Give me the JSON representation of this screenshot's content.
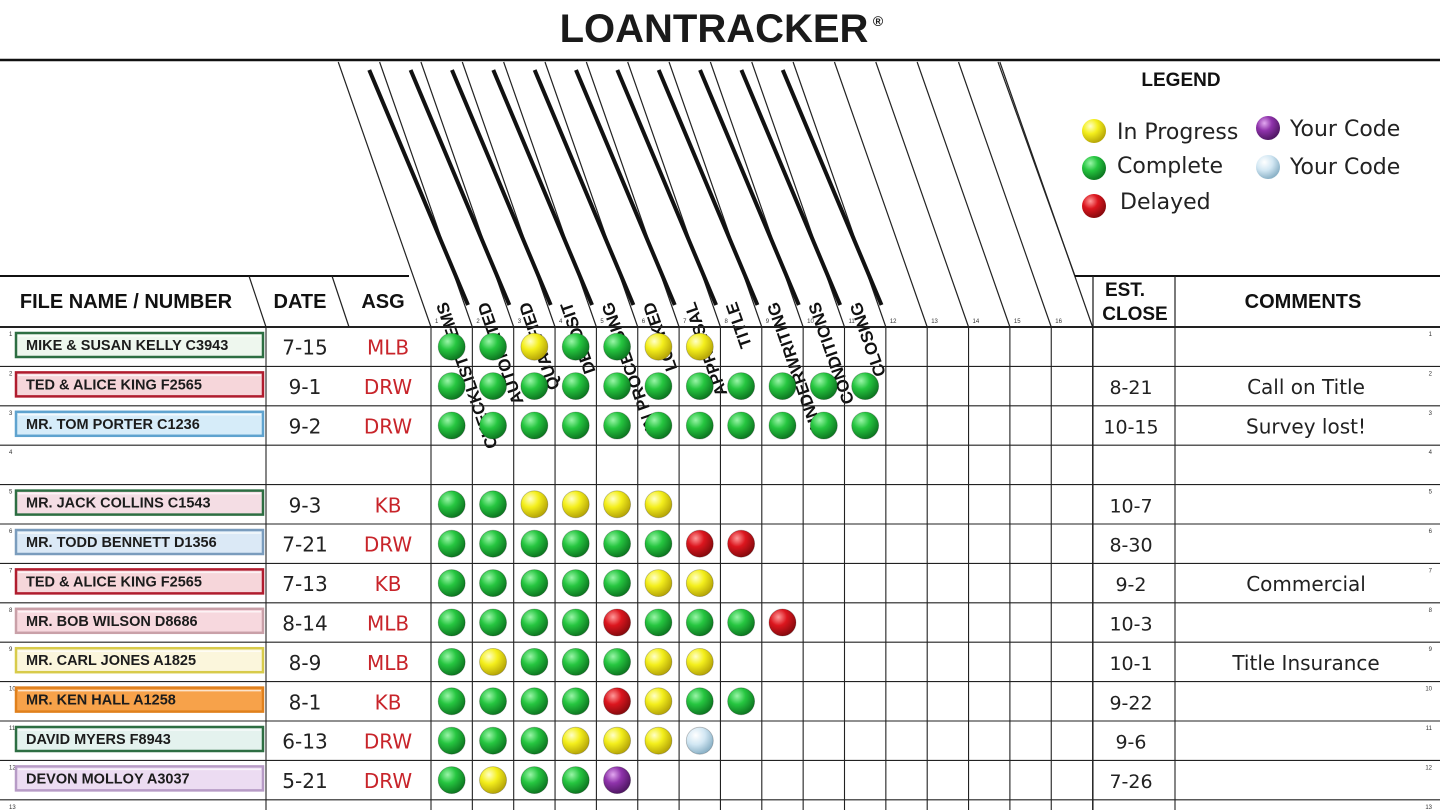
{
  "title": "LOANTRACKER",
  "title_mark": "®",
  "headers": {
    "file": "FILE NAME / NUMBER",
    "date": "DATE",
    "asg": "ASG",
    "est_close_line1": "EST.",
    "est_close_line2": "CLOSE",
    "comments": "COMMENTS"
  },
  "columns": [
    "CHECKLIST ITEMS",
    "AUTOMATED",
    "QUALIFIED",
    "DEPOSIT",
    "IN PROCESSING",
    "LOCKED",
    "APPRAISAL",
    "TITLE",
    "UNDERWRITING",
    "CONDITIONS",
    "CLOSING",
    "",
    "",
    "",
    "",
    ""
  ],
  "column_numbers": [
    "1",
    "2",
    "3",
    "4",
    "5",
    "6",
    "7",
    "8",
    "9",
    "10",
    "11",
    "12",
    "13",
    "14",
    "15",
    "16"
  ],
  "legend": {
    "title": "LEGEND",
    "items": [
      {
        "label": "In Progress",
        "color": "yellow"
      },
      {
        "label": "Complete",
        "color": "green"
      },
      {
        "label": "Delayed",
        "color": "red"
      },
      {
        "label": "Your Code",
        "color": "purple"
      },
      {
        "label": "Your Code",
        "color": "lightblue"
      }
    ]
  },
  "colors": {
    "green": "#1fbf3a",
    "yellow": "#f2ee1a",
    "red": "#d9161c",
    "purple": "#8a2fa6",
    "lightblue": "#cfe6f2",
    "ink_red": "#c8242a"
  },
  "rows": [
    {
      "num": "1",
      "name": "MIKE & SUSAN KELLY C3943",
      "label_bg": "#eef7ee",
      "label_border": "#2d6e42",
      "date": "7-15",
      "asg": "MLB",
      "status": [
        "green",
        "green",
        "yellow",
        "green",
        "green",
        "yellow",
        "yellow"
      ],
      "close": "",
      "comment": ""
    },
    {
      "num": "2",
      "name": "TED & ALICE KING F2565",
      "label_bg": "#f6d6da",
      "label_border": "#b01c2e",
      "date": "9-1",
      "asg": "DRW",
      "status": [
        "green",
        "green",
        "green",
        "green",
        "green",
        "green",
        "green",
        "green",
        "green",
        "green",
        "green"
      ],
      "close": "8-21",
      "comment": "Call on Title"
    },
    {
      "num": "3",
      "name": "MR. TOM PORTER C1236",
      "label_bg": "#d6ecf9",
      "label_border": "#5fa3cf",
      "date": "9-2",
      "asg": "DRW",
      "status": [
        "green",
        "green",
        "green",
        "green",
        "green",
        "green",
        "green",
        "green",
        "green",
        "green",
        "green"
      ],
      "close": "10-15",
      "comment": "Survey lost!"
    },
    {
      "num": "4",
      "name": "",
      "label_bg": "",
      "label_border": "",
      "date": "",
      "asg": "",
      "status": [],
      "close": "",
      "comment": ""
    },
    {
      "num": "5",
      "name": "MR. JACK COLLINS C1543",
      "label_bg": "#f4dde4",
      "label_border": "#2d6e42",
      "date": "9-3",
      "asg": "KB",
      "status": [
        "green",
        "green",
        "yellow",
        "yellow",
        "yellow",
        "yellow"
      ],
      "close": "10-7",
      "comment": ""
    },
    {
      "num": "6",
      "name": "MR. TODD BENNETT D1356",
      "label_bg": "#dbe9f6",
      "label_border": "#7a9cbd",
      "date": "7-21",
      "asg": "DRW",
      "status": [
        "green",
        "green",
        "green",
        "green",
        "green",
        "green",
        "red",
        "red"
      ],
      "close": "8-30",
      "comment": ""
    },
    {
      "num": "7",
      "name": "TED & ALICE KING F2565",
      "label_bg": "#f6d6da",
      "label_border": "#b01c2e",
      "date": "7-13",
      "asg": "KB",
      "status": [
        "green",
        "green",
        "green",
        "green",
        "green",
        "yellow",
        "yellow"
      ],
      "close": "9-2",
      "comment": "Commercial"
    },
    {
      "num": "8",
      "name": "MR. BOB WILSON D8686",
      "label_bg": "#f7d8de",
      "label_border": "#c9a0a8",
      "date": "8-14",
      "asg": "MLB",
      "status": [
        "green",
        "green",
        "green",
        "green",
        "red",
        "green",
        "green",
        "green",
        "red"
      ],
      "close": "10-3",
      "comment": ""
    },
    {
      "num": "9",
      "name": "MR. CARL JONES A1825",
      "label_bg": "#fbf6dc",
      "label_border": "#d8cb4a",
      "date": "8-9",
      "asg": "MLB",
      "status": [
        "green",
        "yellow",
        "green",
        "green",
        "green",
        "yellow",
        "yellow"
      ],
      "close": "10-1",
      "comment": "Title Insurance"
    },
    {
      "num": "10",
      "name": "MR. KEN HALL A1258",
      "label_bg": "#f7a24a",
      "label_border": "#e0801c",
      "date": "8-1",
      "asg": "KB",
      "status": [
        "green",
        "green",
        "green",
        "green",
        "red",
        "yellow",
        "green",
        "green"
      ],
      "close": "9-22",
      "comment": ""
    },
    {
      "num": "11",
      "name": "DAVID MYERS F8943",
      "label_bg": "#e4f2ee",
      "label_border": "#2d6e42",
      "date": "6-13",
      "asg": "DRW",
      "status": [
        "green",
        "green",
        "green",
        "yellow",
        "yellow",
        "yellow",
        "lightblue"
      ],
      "close": "9-6",
      "comment": ""
    },
    {
      "num": "12",
      "name": "DEVON MOLLOY A3037",
      "label_bg": "#ecdcf2",
      "label_border": "#b79bc6",
      "date": "5-21",
      "asg": "DRW",
      "status": [
        "green",
        "yellow",
        "green",
        "green",
        "purple"
      ],
      "close": "7-26",
      "comment": ""
    },
    {
      "num": "13",
      "name": "",
      "label_bg": "",
      "label_border": "",
      "date": "",
      "asg": "",
      "status": [],
      "close": "",
      "comment": ""
    }
  ]
}
